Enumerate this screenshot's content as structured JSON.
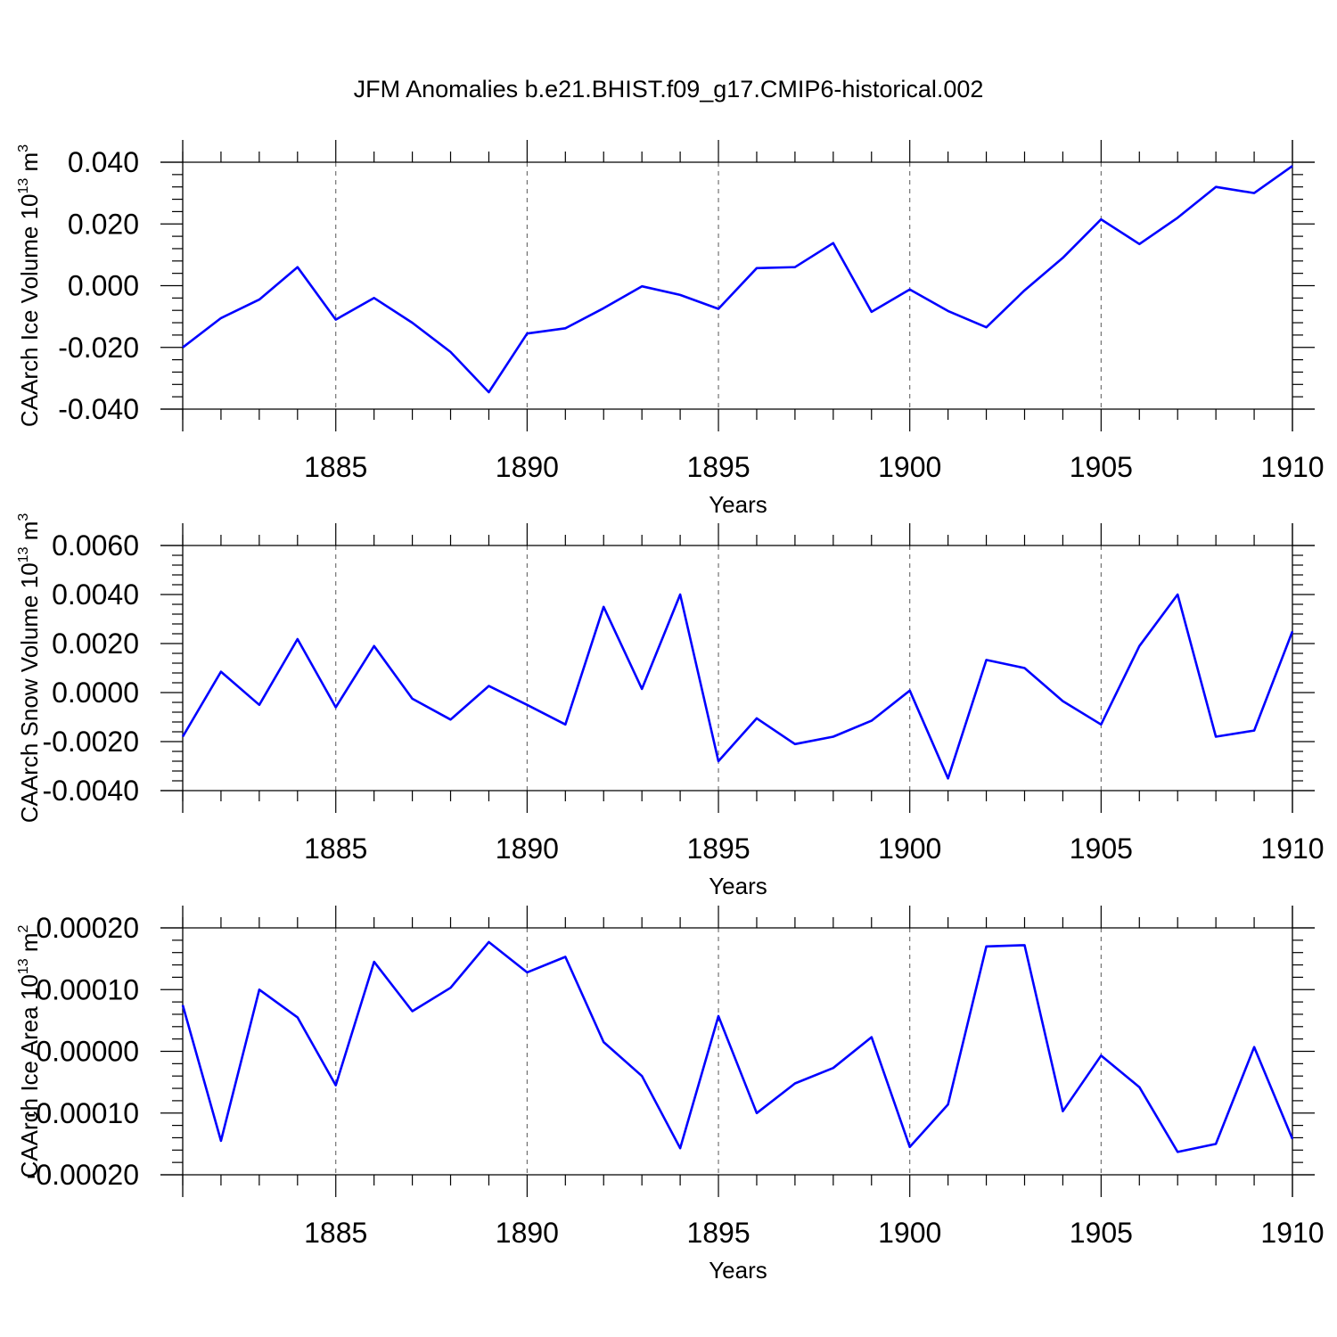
{
  "figure": {
    "title": "JFM Anomalies b.e21.BHIST.f09_g17.CMIP6-historical.002",
    "line_color": "#0000ff"
  },
  "chart_data": [
    {
      "type": "line",
      "ylabel_main": "CAArch Ice Volume 10",
      "ylabel_sup": "13",
      "ylabel_unit": " m",
      "ylabel_unit_sup": "3",
      "xlabel": "Years",
      "xlim": [
        1881,
        1910
      ],
      "ylim": [
        -0.04,
        0.04
      ],
      "yticks": [
        -0.04,
        -0.02,
        0.0,
        0.02,
        0.04
      ],
      "ytick_labels": [
        "-0.040",
        "-0.020",
        "0.000",
        "0.020",
        "0.040"
      ],
      "xticks": [
        1885,
        1890,
        1895,
        1900,
        1905,
        1910
      ],
      "xtick_labels": [
        "1885",
        "1890",
        "1895",
        "1900",
        "1905",
        "1910"
      ],
      "x": [
        1881,
        1882,
        1883,
        1884,
        1885,
        1886,
        1887,
        1888,
        1889,
        1890,
        1891,
        1892,
        1893,
        1894,
        1895,
        1896,
        1897,
        1898,
        1899,
        1900,
        1901,
        1902,
        1903,
        1904,
        1905,
        1906,
        1907,
        1908,
        1909,
        1910
      ],
      "series": [
        {
          "name": "Ice Volume",
          "values": [
            -0.02,
            -0.0105,
            -0.0045,
            0.006,
            -0.011,
            -0.004,
            -0.012,
            -0.0215,
            -0.0345,
            -0.0155,
            -0.0138,
            -0.0073,
            -0.0002,
            -0.003,
            -0.0075,
            0.0057,
            0.006,
            0.0138,
            -0.0085,
            -0.0012,
            -0.0082,
            -0.0135,
            -0.0015,
            0.009,
            0.0215,
            0.0135,
            0.022,
            0.032,
            0.03,
            0.0388
          ]
        }
      ]
    },
    {
      "type": "line",
      "ylabel_main": "CAArch Snow Volume 10",
      "ylabel_sup": "13",
      "ylabel_unit": " m",
      "ylabel_unit_sup": "3",
      "xlabel": "Years",
      "xlim": [
        1881,
        1910
      ],
      "ylim": [
        -0.004,
        0.006
      ],
      "yticks": [
        -0.004,
        -0.002,
        0.0,
        0.002,
        0.004,
        0.006
      ],
      "ytick_labels": [
        "-0.0040",
        "-0.0020",
        "0.0000",
        "0.0020",
        "0.0040",
        "0.0060"
      ],
      "xticks": [
        1885,
        1890,
        1895,
        1900,
        1905,
        1910
      ],
      "xtick_labels": [
        "1885",
        "1890",
        "1895",
        "1900",
        "1905",
        "1910"
      ],
      "x": [
        1881,
        1882,
        1883,
        1884,
        1885,
        1886,
        1887,
        1888,
        1889,
        1890,
        1891,
        1892,
        1893,
        1894,
        1895,
        1896,
        1897,
        1898,
        1899,
        1900,
        1901,
        1902,
        1903,
        1904,
        1905,
        1906,
        1907,
        1908,
        1909,
        1910
      ],
      "series": [
        {
          "name": "Snow Volume",
          "values": [
            -0.0018,
            0.00085,
            -0.0005,
            0.00218,
            -0.0006,
            0.0019,
            -0.00025,
            -0.0011,
            0.00027,
            -0.0005,
            -0.0013,
            0.0035,
            0.00015,
            0.004,
            -0.0028,
            -0.00105,
            -0.0021,
            -0.0018,
            -0.00115,
            8e-05,
            -0.0035,
            0.00133,
            0.001,
            -0.00035,
            -0.0013,
            0.0019,
            0.004,
            -0.0018,
            -0.00155,
            0.0025
          ]
        }
      ]
    },
    {
      "type": "line",
      "ylabel_main": "CAArch Ice Area 10",
      "ylabel_sup": "13",
      "ylabel_unit": " m",
      "ylabel_unit_sup": "2",
      "xlabel": "Years",
      "xlim": [
        1881,
        1910
      ],
      "ylim": [
        -0.0002,
        0.0002
      ],
      "yticks": [
        -0.0002,
        -0.0001,
        0.0,
        0.0001,
        0.0002
      ],
      "ytick_labels": [
        "-0.00020",
        "-0.00010",
        "0.00000",
        "0.00010",
        "0.00020"
      ],
      "xticks": [
        1885,
        1890,
        1895,
        1900,
        1905,
        1910
      ],
      "xtick_labels": [
        "1885",
        "1890",
        "1895",
        "1900",
        "1905",
        "1910"
      ],
      "x": [
        1881,
        1882,
        1883,
        1884,
        1885,
        1886,
        1887,
        1888,
        1889,
        1890,
        1891,
        1892,
        1893,
        1894,
        1895,
        1896,
        1897,
        1898,
        1899,
        1900,
        1901,
        1902,
        1903,
        1904,
        1905,
        1906,
        1907,
        1908,
        1909,
        1910
      ],
      "series": [
        {
          "name": "Ice Area",
          "values": [
            7.5e-05,
            -0.000145,
            0.0001,
            5.5e-05,
            -5.5e-05,
            0.000145,
            6.5e-05,
            0.000103,
            0.000177,
            0.000128,
            0.000153,
            1.5e-05,
            -4e-05,
            -0.000157,
            5.7e-05,
            -0.0001,
            -5.2e-05,
            -2.7e-05,
            2.3e-05,
            -0.000155,
            -8.6e-05,
            0.00017,
            0.000172,
            -9.7e-05,
            -7e-06,
            -5.8e-05,
            -0.000163,
            -0.00015,
            7e-06,
            -0.000142
          ]
        }
      ]
    }
  ]
}
